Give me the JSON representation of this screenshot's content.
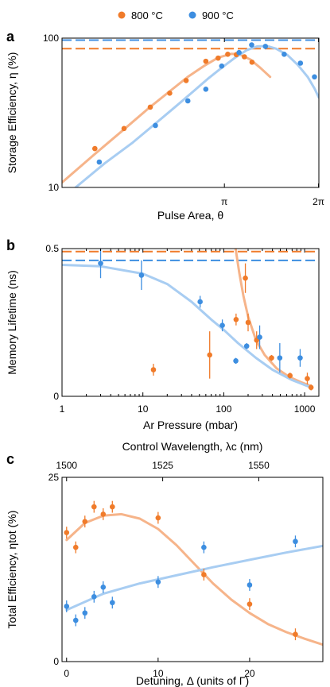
{
  "colors": {
    "orange": "#f07b2a",
    "blue": "#3d8ee0",
    "orange_fit": "#f6b48a",
    "blue_fit": "#a8cdf2"
  },
  "legend": {
    "series_a": "800 °C",
    "series_b": "900 °C"
  },
  "chart_data": [
    {
      "panel": "a",
      "type": "scatter",
      "xlabel": "Pulse Area, θ",
      "ylabel": "Storage Efficiency, η (%)",
      "yscale": "log",
      "xscale": "log",
      "x_ticks": [
        {
          "value": 3.14159,
          "label": "π"
        },
        {
          "value": 6.28318,
          "label": "2π"
        }
      ],
      "y_ticks": [
        {
          "value": 10,
          "label": "10"
        },
        {
          "value": 100,
          "label": "100"
        }
      ],
      "xlim": [
        0.95,
        6.3
      ],
      "ylim": [
        10,
        100
      ],
      "series": [
        {
          "name": "800 °C",
          "color_key": "orange",
          "points": [
            [
              1.21,
              18.2
            ],
            [
              1.5,
              24.8
            ],
            [
              1.82,
              34.5
            ],
            [
              2.1,
              42.8
            ],
            [
              2.37,
              52.0
            ],
            [
              2.74,
              70.0
            ],
            [
              3.0,
              73.5
            ],
            [
              3.22,
              78.0
            ],
            [
              3.43,
              77.5
            ],
            [
              3.64,
              75.0
            ],
            [
              3.85,
              69.0
            ]
          ],
          "fit": [
            [
              0.95,
              10.8
            ],
            [
              1.2,
              16.5
            ],
            [
              1.5,
              24.5
            ],
            [
              1.8,
              34.0
            ],
            [
              2.1,
              44.0
            ],
            [
              2.4,
              55.0
            ],
            [
              2.7,
              65.0
            ],
            [
              3.0,
              74.0
            ],
            [
              3.3,
              78.5
            ],
            [
              3.5,
              78.0
            ],
            [
              3.8,
              72.0
            ],
            [
              4.1,
              63.0
            ],
            [
              4.4,
              55.0
            ]
          ],
          "reference_line": 85
        },
        {
          "name": "900 °C",
          "color_key": "blue",
          "points": [
            [
              1.25,
              14.8
            ],
            [
              1.89,
              26.0
            ],
            [
              2.4,
              38.0
            ],
            [
              2.74,
              45.5
            ],
            [
              3.08,
              65.0
            ],
            [
              3.5,
              80.0
            ],
            [
              3.84,
              90.0
            ],
            [
              4.25,
              88.0
            ],
            [
              4.88,
              78.0
            ],
            [
              5.5,
              68.0
            ],
            [
              6.1,
              55.0
            ]
          ],
          "fit": [
            [
              1.05,
              10.0
            ],
            [
              1.3,
              14.5
            ],
            [
              1.6,
              20.0
            ],
            [
              1.9,
              27.0
            ],
            [
              2.2,
              35.0
            ],
            [
              2.5,
              44.0
            ],
            [
              2.8,
              54.0
            ],
            [
              3.1,
              64.0
            ],
            [
              3.4,
              74.0
            ],
            [
              3.7,
              83.0
            ],
            [
              4.0,
              88.0
            ],
            [
              4.3,
              88.5
            ],
            [
              4.6,
              85.0
            ],
            [
              5.0,
              77.0
            ],
            [
              5.4,
              66.0
            ],
            [
              5.8,
              55.0
            ],
            [
              6.1,
              46.0
            ],
            [
              6.3,
              40.0
            ]
          ],
          "reference_line": 97
        }
      ]
    },
    {
      "panel": "b",
      "type": "scatter",
      "xlabel": "Ar Pressure (mbar)",
      "ylabel": "Memory Lifetime (ns)",
      "xscale": "log",
      "x_ticks": [
        {
          "value": 1,
          "label": "1"
        },
        {
          "value": 10,
          "label": "10"
        },
        {
          "value": 100,
          "label": "100"
        },
        {
          "value": 1000,
          "label": "1000"
        }
      ],
      "y_ticks": [
        {
          "value": 0,
          "label": "0"
        },
        {
          "value": 0.5,
          "label": "0.5"
        }
      ],
      "xlim": [
        1,
        1500
      ],
      "ylim": [
        0,
        0.5
      ],
      "series": [
        {
          "name": "800 °C",
          "color_key": "orange",
          "points": [
            [
              13.5,
              0.09,
              0.02
            ],
            [
              67,
              0.14,
              0.08
            ],
            [
              142,
              0.26,
              0.02
            ],
            [
              185,
              0.4,
              0.05
            ],
            [
              200,
              0.25,
              0.03
            ],
            [
              255,
              0.19,
              0.03
            ],
            [
              390,
              0.13,
              0.01
            ],
            [
              660,
              0.07,
              0.01
            ],
            [
              1080,
              0.06,
              0.02
            ],
            [
              1200,
              0.03,
              0.01
            ]
          ],
          "fit": [
            [
              140,
              0.5
            ],
            [
              155,
              0.42
            ],
            [
              175,
              0.34
            ],
            [
              200,
              0.27
            ],
            [
              250,
              0.19
            ],
            [
              320,
              0.14
            ],
            [
              450,
              0.095
            ],
            [
              650,
              0.065
            ],
            [
              900,
              0.048
            ],
            [
              1200,
              0.035
            ]
          ],
          "reference_line": 0.49
        },
        {
          "name": "900 °C",
          "color_key": "blue",
          "points": [
            [
              3,
              0.45,
              0.05
            ],
            [
              9.6,
              0.41,
              0.05
            ],
            [
              51,
              0.32,
              0.02
            ],
            [
              96,
              0.24,
              0.02
            ],
            [
              141,
              0.12,
              0.01
            ],
            [
              192,
              0.17,
              0.01
            ],
            [
              278,
              0.2,
              0.04
            ],
            [
              493,
              0.13,
              0.05
            ],
            [
              880,
              0.13,
              0.03
            ]
          ],
          "fit": [
            [
              1,
              0.445
            ],
            [
              3,
              0.44
            ],
            [
              10,
              0.415
            ],
            [
              20,
              0.38
            ],
            [
              40,
              0.32
            ],
            [
              70,
              0.26
            ],
            [
              100,
              0.225
            ],
            [
              150,
              0.18
            ],
            [
              250,
              0.13
            ],
            [
              400,
              0.09
            ],
            [
              700,
              0.055
            ],
            [
              1200,
              0.03
            ]
          ],
          "reference_line": 0.46
        }
      ]
    },
    {
      "panel": "c",
      "type": "scatter",
      "xlabel": "Detuning, Δ (units of Γ)",
      "top_xlabel": "Control Wavelength, λc (nm)",
      "ylabel": "Total Efficiency, ηtot (%)",
      "x_ticks": [
        {
          "value": 0,
          "label": "0"
        },
        {
          "value": 10,
          "label": "10"
        },
        {
          "value": 20,
          "label": "20"
        }
      ],
      "top_ticks": [
        {
          "value": 0,
          "label": "1500"
        },
        {
          "value": 10.5,
          "label": "1525"
        },
        {
          "value": 21,
          "label": "1550"
        }
      ],
      "y_ticks": [
        {
          "value": 0,
          "label": "0"
        },
        {
          "value": 25,
          "label": "25"
        }
      ],
      "xlim": [
        -0.5,
        28
      ],
      "ylim": [
        0,
        25
      ],
      "series": [
        {
          "name": "800 °C",
          "color_key": "orange",
          "points": [
            [
              0,
              17.5,
              0.8
            ],
            [
              1,
              15.5,
              0.8
            ],
            [
              2,
              19.0,
              0.8
            ],
            [
              3,
              21.0,
              0.8
            ],
            [
              4,
              20.0,
              0.8
            ],
            [
              5,
              21.0,
              0.8
            ],
            [
              10,
              19.5,
              0.8
            ],
            [
              15,
              11.8,
              0.8
            ],
            [
              20,
              7.8,
              0.8
            ],
            [
              25,
              3.7,
              0.8
            ]
          ],
          "fit": [
            [
              0,
              16.5
            ],
            [
              2,
              18.8
            ],
            [
              4,
              19.8
            ],
            [
              6,
              20.0
            ],
            [
              8,
              19.4
            ],
            [
              10,
              18.0
            ],
            [
              12,
              15.8
            ],
            [
              14,
              13.2
            ],
            [
              16,
              10.6
            ],
            [
              18,
              8.4
            ],
            [
              20,
              6.6
            ],
            [
              22,
              5.1
            ],
            [
              24,
              4.0
            ],
            [
              26,
              3.1
            ],
            [
              28,
              2.3
            ]
          ],
          "reference_line": null
        },
        {
          "name": "900 °C",
          "color_key": "blue",
          "points": [
            [
              0,
              7.5,
              0.8
            ],
            [
              1,
              5.6,
              0.8
            ],
            [
              2,
              6.6,
              0.8
            ],
            [
              3,
              8.8,
              0.8
            ],
            [
              4,
              10.1,
              0.8
            ],
            [
              5,
              8.0,
              0.8
            ],
            [
              10,
              10.8,
              0.8
            ],
            [
              15,
              15.5,
              0.8
            ],
            [
              20,
              10.4,
              0.8
            ],
            [
              25,
              16.3,
              0.8
            ]
          ],
          "fit": [
            [
              0,
              7.0
            ],
            [
              4,
              9.2
            ],
            [
              8,
              10.6
            ],
            [
              12,
              11.7
            ],
            [
              16,
              12.8
            ],
            [
              20,
              13.8
            ],
            [
              24,
              14.8
            ],
            [
              28,
              15.7
            ]
          ],
          "reference_line": null
        }
      ]
    }
  ]
}
